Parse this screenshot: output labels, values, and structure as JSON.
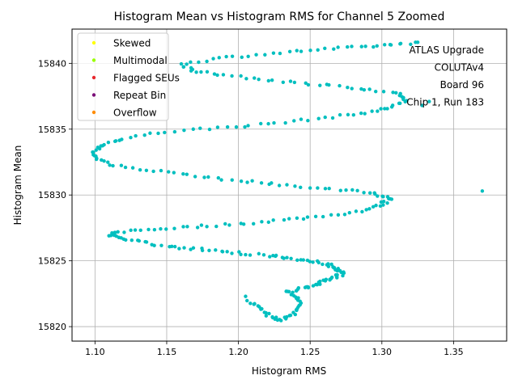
{
  "chart_data": {
    "type": "scatter",
    "title": "Histogram Mean vs Histogram RMS for Channel 5 Zoomed",
    "xlabel": "Histogram RMS",
    "ylabel": "Histogram Mean",
    "xlim": [
      1.084,
      1.387
    ],
    "ylim": [
      15818.9,
      15842.6
    ],
    "xticks": [
      1.1,
      1.15,
      1.2,
      1.25,
      1.3,
      1.35
    ],
    "xtick_labels": [
      "1.10",
      "1.15",
      "1.20",
      "1.25",
      "1.30",
      "1.35"
    ],
    "yticks": [
      15820,
      15825,
      15830,
      15835,
      15840
    ],
    "ytick_labels": [
      "15820",
      "15825",
      "15830",
      "15835",
      "15840"
    ],
    "grid": true,
    "legend_position": "top-left",
    "legend": [
      {
        "label": "Skewed",
        "color": "#ffff00"
      },
      {
        "label": "Multimodal",
        "color": "#9aff00"
      },
      {
        "label": "Flagged SEUs",
        "color": "#e8282d"
      },
      {
        "label": "Repeat Bin",
        "color": "#7b0f78"
      },
      {
        "label": "Overflow",
        "color": "#ff8c00"
      }
    ],
    "annotation": [
      "ATLAS Upgrade",
      "COLUTAv4",
      "Board 96",
      "Chip 1, Run 183"
    ],
    "series": [
      {
        "color": "#00bfbf",
        "path": [
          [
            1.208,
            15821.9
          ],
          [
            1.215,
            15821.4
          ],
          [
            1.222,
            15820.7
          ],
          [
            1.23,
            15820.5
          ],
          [
            1.238,
            15821.0
          ],
          [
            1.243,
            15821.6
          ],
          [
            1.24,
            15822.2
          ],
          [
            1.235,
            15822.7
          ],
          [
            1.245,
            15822.9
          ],
          [
            1.253,
            15823.2
          ],
          [
            1.26,
            15823.4
          ],
          [
            1.267,
            15823.7
          ],
          [
            1.272,
            15824.0
          ],
          [
            1.268,
            15824.4
          ],
          [
            1.262,
            15824.7
          ],
          [
            1.25,
            15825.0
          ],
          [
            1.235,
            15825.2
          ],
          [
            1.22,
            15825.4
          ],
          [
            1.2,
            15825.6
          ],
          [
            1.18,
            15825.8
          ],
          [
            1.16,
            15826.0
          ],
          [
            1.14,
            15826.3
          ],
          [
            1.122,
            15826.6
          ],
          [
            1.11,
            15826.9
          ],
          [
            1.115,
            15827.2
          ],
          [
            1.14,
            15827.4
          ],
          [
            1.17,
            15827.6
          ],
          [
            1.2,
            15827.8
          ],
          [
            1.23,
            15828.1
          ],
          [
            1.26,
            15828.4
          ],
          [
            1.285,
            15828.8
          ],
          [
            1.3,
            15829.3
          ],
          [
            1.306,
            15829.8
          ],
          [
            1.295,
            15830.1
          ],
          [
            1.27,
            15830.4
          ],
          [
            1.24,
            15830.7
          ],
          [
            1.21,
            15831.0
          ],
          [
            1.18,
            15831.3
          ],
          [
            1.15,
            15831.7
          ],
          [
            1.12,
            15832.1
          ],
          [
            1.103,
            15832.6
          ],
          [
            1.098,
            15833.2
          ],
          [
            1.105,
            15833.8
          ],
          [
            1.12,
            15834.3
          ],
          [
            1.15,
            15834.8
          ],
          [
            1.185,
            15835.1
          ],
          [
            1.22,
            15835.4
          ],
          [
            1.255,
            15835.8
          ],
          [
            1.285,
            15836.2
          ],
          [
            1.305,
            15836.6
          ],
          [
            1.318,
            15837.2
          ],
          [
            1.31,
            15837.7
          ],
          [
            1.285,
            15838.1
          ],
          [
            1.255,
            15838.4
          ],
          [
            1.225,
            15838.7
          ],
          [
            1.195,
            15839.0
          ],
          [
            1.17,
            15839.4
          ],
          [
            1.16,
            15839.9
          ],
          [
            1.185,
            15840.4
          ],
          [
            1.22,
            15840.7
          ],
          [
            1.25,
            15841.0
          ],
          [
            1.28,
            15841.2
          ],
          [
            1.305,
            15841.4
          ],
          [
            1.325,
            15841.6
          ]
        ],
        "extra_points": [
          [
            1.37,
            15830.3
          ],
          [
            1.333,
            15837.1
          ],
          [
            1.328,
            15836.8
          ],
          [
            1.205,
            15822.3
          ]
        ]
      }
    ]
  }
}
